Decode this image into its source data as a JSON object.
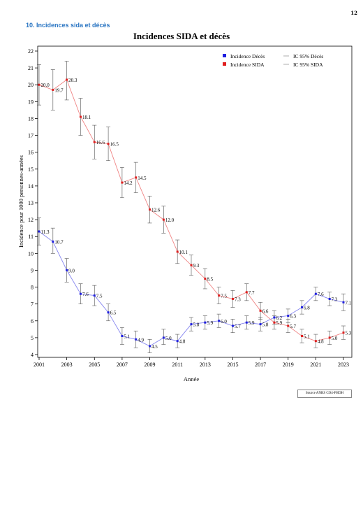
{
  "page": {
    "number": "12",
    "section_title": "10. Incidences sida et décès",
    "source": "Source ANRS CO4-FHDH"
  },
  "chart_data": {
    "type": "line",
    "title": "Incidences SIDA et décès",
    "xlabel": "Année",
    "ylabel": "Incidence pour 1000 personnes-années",
    "xlim": [
      2001,
      2023
    ],
    "ylim": [
      4,
      22
    ],
    "x_ticks": [
      2001,
      2003,
      2005,
      2007,
      2009,
      2011,
      2013,
      2015,
      2017,
      2019,
      2021,
      2023
    ],
    "y_ticks": [
      4,
      5,
      6,
      7,
      8,
      9,
      10,
      11,
      12,
      13,
      14,
      15,
      16,
      17,
      18,
      19,
      20,
      21,
      22
    ],
    "x": [
      2001,
      2002,
      2003,
      2004,
      2005,
      2006,
      2007,
      2008,
      2009,
      2010,
      2011,
      2012,
      2013,
      2014,
      2015,
      2016,
      2017,
      2018,
      2019,
      2020,
      2021,
      2022,
      2023
    ],
    "legend": {
      "placement": "top-right",
      "entries": [
        "Incidence Décès",
        "IC 95% Décès",
        "Incidence SIDA",
        "IC 95% SIDA"
      ]
    },
    "series": [
      {
        "name": "Incidence Décès",
        "color": "#1f1fe0",
        "line_color": "#8585f0",
        "values": [
          11.3,
          10.7,
          9.0,
          7.6,
          7.5,
          6.5,
          5.1,
          4.9,
          4.5,
          5.0,
          4.8,
          5.8,
          5.9,
          6.0,
          5.7,
          5.9,
          5.8,
          6.2,
          6.3,
          6.8,
          7.6,
          7.3,
          7.1
        ],
        "labels": [
          "11.3",
          "10.7",
          "9.0",
          "7.6",
          "7.5",
          "6.5",
          "5.1",
          "4.9",
          "4.5",
          "5.0",
          "4.8",
          "5.8",
          "5.9",
          "6.0",
          "5.7",
          "5.9",
          "5.8",
          "6.2",
          "6.3",
          "6.8",
          "7.6",
          "7.3",
          "7.1"
        ],
        "ci_low": [
          10.5,
          10.0,
          8.3,
          7.0,
          6.9,
          6.0,
          4.6,
          4.4,
          4.1,
          4.6,
          4.4,
          5.4,
          5.5,
          5.6,
          5.3,
          5.5,
          5.4,
          5.8,
          5.9,
          6.4,
          7.2,
          6.9,
          6.6
        ],
        "ci_high": [
          12.1,
          11.5,
          9.7,
          8.2,
          8.1,
          7.0,
          5.6,
          5.4,
          4.9,
          5.5,
          5.2,
          6.2,
          6.3,
          6.4,
          6.1,
          6.3,
          6.2,
          6.6,
          6.7,
          7.2,
          8.0,
          7.7,
          7.6
        ]
      },
      {
        "name": "Incidence SIDA",
        "color": "#e01f1f",
        "line_color": "#f08585",
        "values": [
          20.0,
          19.7,
          20.3,
          18.1,
          16.6,
          16.5,
          14.2,
          14.5,
          12.6,
          12.0,
          10.1,
          9.3,
          8.5,
          7.5,
          7.3,
          7.7,
          6.6,
          5.9,
          5.7,
          5.1,
          4.8,
          5.0,
          5.3
        ],
        "labels": [
          "20.0",
          "19.7",
          "20.3",
          "18.1",
          "16.6",
          "16.5",
          "14.2",
          "14.5",
          "12.6",
          "12.0",
          "10.1",
          "9.3",
          "8.5",
          "7.5",
          "7.3",
          "7.7",
          "6.6",
          "5.9",
          "5.7",
          "5.1",
          "4.8",
          "5.0",
          "5.3"
        ],
        "ci_low": [
          18.8,
          18.5,
          19.1,
          17.0,
          15.6,
          15.5,
          13.3,
          13.6,
          11.8,
          11.2,
          9.4,
          8.7,
          7.9,
          7.0,
          6.8,
          7.2,
          6.1,
          5.5,
          5.3,
          4.7,
          4.4,
          4.6,
          4.9
        ],
        "ci_high": [
          21.2,
          20.9,
          21.4,
          19.2,
          17.6,
          17.5,
          15.1,
          15.4,
          13.4,
          12.8,
          10.8,
          9.9,
          9.1,
          8.0,
          7.8,
          8.2,
          7.1,
          6.3,
          6.1,
          5.5,
          5.2,
          5.4,
          5.7
        ]
      }
    ]
  }
}
